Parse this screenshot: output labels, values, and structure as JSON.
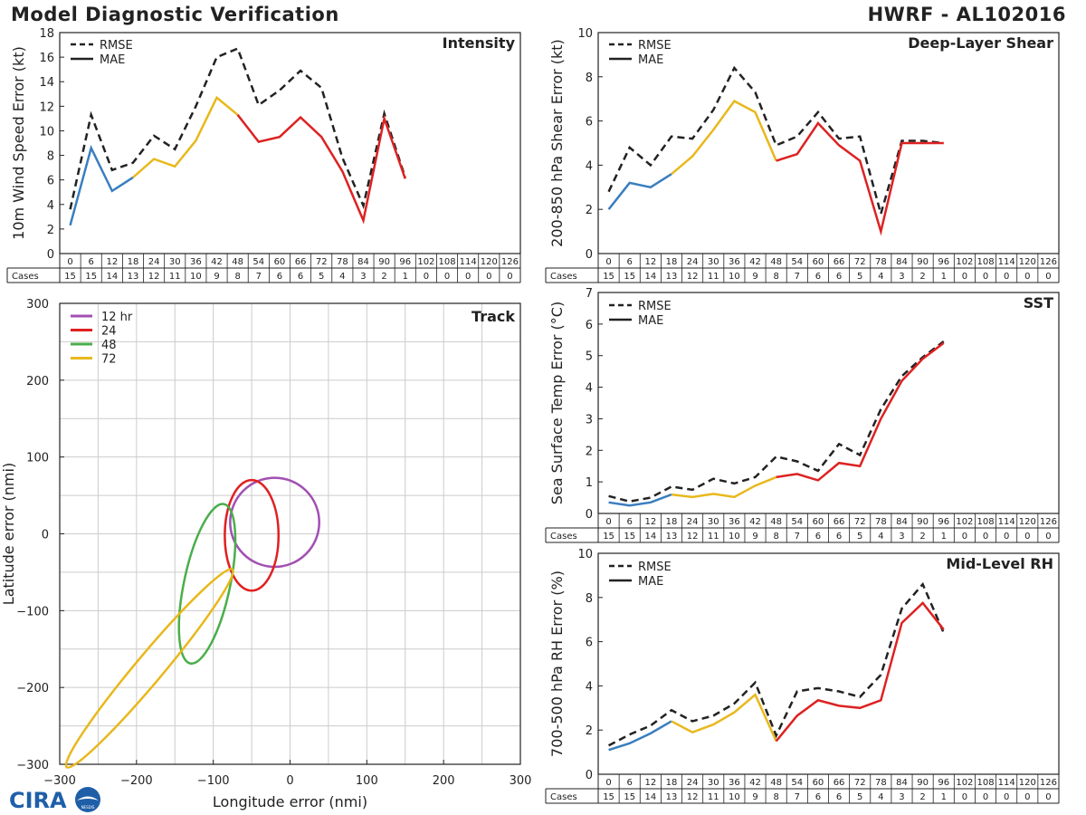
{
  "header": {
    "title": "Model Diagnostic Verification",
    "storm_id": "HWRF - AL102016"
  },
  "logo": {
    "text": "CIRA",
    "sub": "NESDIS"
  },
  "colors": {
    "early": "#3a7ebf",
    "mid": "#e8b81c",
    "late": "#dd2222",
    "rmse": "#222222",
    "track_12": "#a24fb3",
    "track_24": "#e02020",
    "track_48": "#4aae4a",
    "track_72": "#e8b81c"
  },
  "legend_labels": {
    "rmse": "RMSE",
    "mae": "MAE"
  },
  "cases_label": "Cases",
  "hours": [
    "0",
    "6",
    "12",
    "18",
    "24",
    "30",
    "36",
    "42",
    "48",
    "54",
    "60",
    "66",
    "72",
    "78",
    "84",
    "90",
    "96",
    "102",
    "108",
    "114",
    "120",
    "126"
  ],
  "cases": [
    "15",
    "15",
    "14",
    "13",
    "12",
    "11",
    "10",
    "9",
    "8",
    "7",
    "6",
    "6",
    "5",
    "4",
    "3",
    "2",
    "1",
    "0",
    "0",
    "0",
    "0",
    "0"
  ],
  "chart_data": [
    {
      "id": "intensity",
      "type": "line",
      "title": "Intensity",
      "ylabel": "10m Wind Speed Error (kt)",
      "ylim": [
        0,
        18
      ],
      "yticks": [
        0,
        2,
        4,
        6,
        8,
        10,
        12,
        14,
        16,
        18
      ],
      "x": [
        0,
        6,
        12,
        18,
        24,
        30,
        36,
        42,
        48,
        54,
        60,
        66,
        72,
        78,
        84,
        90,
        96
      ],
      "series": [
        {
          "name": "RMSE",
          "values": [
            3.6,
            11.3,
            6.8,
            7.4,
            9.6,
            8.5,
            12.0,
            16.0,
            16.7,
            12.1,
            13.3,
            14.9,
            13.5,
            7.8,
            3.9,
            11.4,
            6.2
          ]
        },
        {
          "name": "MAE",
          "values": [
            2.3,
            8.6,
            5.1,
            6.2,
            7.7,
            7.1,
            9.2,
            12.7,
            11.3,
            9.1,
            9.5,
            11.1,
            9.5,
            6.7,
            2.7,
            11.0,
            6.1
          ]
        }
      ]
    },
    {
      "id": "shear",
      "type": "line",
      "title": "Deep-Layer Shear",
      "ylabel": "200-850 hPa Shear Error (kt)",
      "ylim": [
        0,
        10
      ],
      "yticks": [
        0,
        2,
        4,
        6,
        8,
        10
      ],
      "x": [
        0,
        6,
        12,
        18,
        24,
        30,
        36,
        42,
        48,
        54,
        60,
        66,
        72,
        78,
        84,
        90,
        96
      ],
      "series": [
        {
          "name": "RMSE",
          "values": [
            2.8,
            4.8,
            4.0,
            5.3,
            5.2,
            6.5,
            8.4,
            7.3,
            4.9,
            5.3,
            6.4,
            5.2,
            5.3,
            1.8,
            5.1,
            5.1,
            5.0
          ]
        },
        {
          "name": "MAE",
          "values": [
            2.0,
            3.2,
            3.0,
            3.6,
            4.4,
            5.6,
            6.9,
            6.4,
            4.2,
            4.5,
            5.9,
            4.9,
            4.2,
            1.0,
            5.0,
            5.0,
            5.0
          ]
        }
      ]
    },
    {
      "id": "sst",
      "type": "line",
      "title": "SST",
      "ylabel": "Sea Surface Temp Error (°C)",
      "ylim": [
        0,
        7
      ],
      "yticks": [
        0,
        1,
        2,
        3,
        4,
        5,
        6,
        7
      ],
      "x": [
        0,
        6,
        12,
        18,
        24,
        30,
        36,
        42,
        48,
        54,
        60,
        66,
        72,
        78,
        84,
        90,
        96
      ],
      "series": [
        {
          "name": "RMSE",
          "values": [
            0.55,
            0.38,
            0.5,
            0.85,
            0.75,
            1.1,
            0.95,
            1.15,
            1.8,
            1.65,
            1.35,
            2.2,
            1.85,
            3.3,
            4.35,
            4.95,
            5.45
          ]
        },
        {
          "name": "MAE",
          "values": [
            0.35,
            0.25,
            0.35,
            0.6,
            0.52,
            0.62,
            0.52,
            0.88,
            1.15,
            1.25,
            1.05,
            1.6,
            1.5,
            3.0,
            4.2,
            4.9,
            5.4
          ]
        }
      ]
    },
    {
      "id": "rh",
      "type": "line",
      "title": "Mid-Level RH",
      "ylabel": "700-500 hPa RH Error (%)",
      "ylim": [
        0,
        10
      ],
      "yticks": [
        0,
        2,
        4,
        6,
        8,
        10
      ],
      "x": [
        0,
        6,
        12,
        18,
        24,
        30,
        36,
        42,
        48,
        54,
        60,
        66,
        72,
        78,
        84,
        90,
        96
      ],
      "series": [
        {
          "name": "RMSE",
          "values": [
            1.3,
            1.8,
            2.2,
            2.9,
            2.4,
            2.65,
            3.2,
            4.15,
            1.75,
            3.75,
            3.9,
            3.75,
            3.5,
            4.5,
            7.5,
            8.6,
            6.4
          ]
        },
        {
          "name": "MAE",
          "values": [
            1.1,
            1.4,
            1.85,
            2.4,
            1.9,
            2.25,
            2.8,
            3.6,
            1.5,
            2.65,
            3.35,
            3.1,
            3.0,
            3.35,
            6.85,
            7.75,
            6.55
          ]
        }
      ]
    },
    {
      "id": "track",
      "type": "scatter",
      "title": "Track",
      "xlabel": "Longitude error (nmi)",
      "ylabel": "Latitude error (nmi)",
      "xlim": [
        -300,
        300
      ],
      "ylim": [
        -300,
        300
      ],
      "xticks": [
        -300,
        -200,
        -100,
        0,
        100,
        200,
        300
      ],
      "yticks": [
        -300,
        -200,
        -100,
        0,
        100,
        200,
        300
      ],
      "tick_labels_x": [
        "−300",
        "−200",
        "−100",
        "0",
        "100",
        "200",
        "300"
      ],
      "tick_labels_y": [
        "−300",
        "−200",
        "−100",
        "0",
        "100",
        "200",
        "300"
      ],
      "grid": true,
      "ellipses": [
        {
          "name": "12 hr",
          "cx": -20,
          "cy": 15,
          "rx": 58,
          "ry": 58,
          "angle": 0
        },
        {
          "name": "24",
          "cx": -50,
          "cy": -2,
          "rx": 35,
          "ry": 72,
          "angle": 0
        },
        {
          "name": "48",
          "cx": -108,
          "cy": -65,
          "rx": 30,
          "ry": 106,
          "angle": 12
        },
        {
          "name": "72",
          "cx": -183,
          "cy": -175,
          "rx": 18,
          "ry": 168,
          "angle": 40
        }
      ]
    }
  ]
}
